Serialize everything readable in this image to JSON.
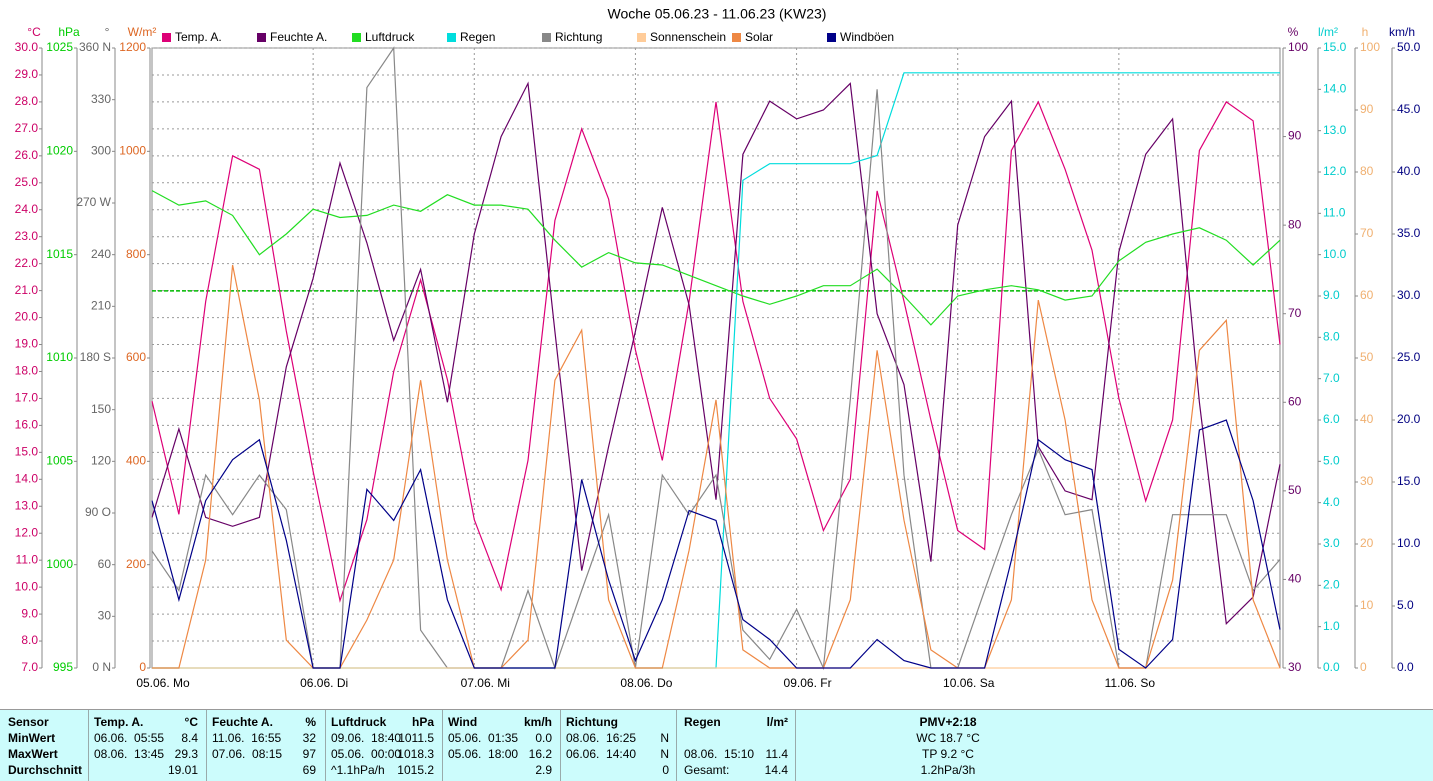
{
  "chart_data": {
    "type": "line",
    "title": "Woche 05.06.23 - 11.06.23 (KW23)",
    "x_labels": [
      "05.06.  Mo",
      "06.06.  Di",
      "07.06.  Mi",
      "08.06.  Do",
      "09.06.  Fr",
      "10.06.  Sa",
      "11.06.  So"
    ],
    "grid": true,
    "axes": [
      {
        "unit": "°C",
        "side": "left",
        "color": "#cc0066",
        "lim": [
          7,
          30
        ],
        "ticks": [
          {
            "value": 7,
            "label": "7.0"
          },
          {
            "value": 8,
            "label": "8.0"
          },
          {
            "value": 9,
            "label": "9.0"
          },
          {
            "value": 10,
            "label": "10.0"
          },
          {
            "value": 11,
            "label": "11.0"
          },
          {
            "value": 12,
            "label": "12.0"
          },
          {
            "value": 13,
            "label": "13.0"
          },
          {
            "value": 14,
            "label": "14.0"
          },
          {
            "value": 15,
            "label": "15.0"
          },
          {
            "value": 16,
            "label": "16.0"
          },
          {
            "value": 17,
            "label": "17.0"
          },
          {
            "value": 18,
            "label": "18.0"
          },
          {
            "value": 19,
            "label": "19.0"
          },
          {
            "value": 20,
            "label": "20.0"
          },
          {
            "value": 21,
            "label": "21.0"
          },
          {
            "value": 22,
            "label": "22.0"
          },
          {
            "value": 23,
            "label": "23.0"
          },
          {
            "value": 24,
            "label": "24.0"
          },
          {
            "value": 25,
            "label": "25.0"
          },
          {
            "value": 26,
            "label": "26.0"
          },
          {
            "value": 27,
            "label": "27.0"
          },
          {
            "value": 28,
            "label": "28.0"
          },
          {
            "value": 29,
            "label": "29.0"
          },
          {
            "value": 30,
            "label": "30.0"
          }
        ]
      },
      {
        "unit": "hPa",
        "side": "left",
        "color": "#00cc00",
        "lim": [
          995,
          1025
        ],
        "ticks": [
          995,
          1000,
          1005,
          1010,
          1015,
          1020,
          1025
        ]
      },
      {
        "unit": "°",
        "side": "left",
        "color": "#666666",
        "lim": [
          0,
          360
        ],
        "ticks": [
          {
            "value": 0,
            "label": "0 N"
          },
          30,
          60,
          {
            "value": 90,
            "label": "90 O"
          },
          120,
          150,
          {
            "value": 180,
            "label": "180 S"
          },
          210,
          240,
          {
            "value": 270,
            "label": "270 W"
          },
          300,
          330,
          {
            "value": 360,
            "label": "360 N"
          }
        ]
      },
      {
        "unit": "W/m²",
        "side": "left",
        "color": "#dd6622",
        "lim": [
          0,
          1200
        ],
        "ticks": [
          0,
          200,
          400,
          600,
          800,
          1000,
          1200
        ]
      },
      {
        "unit": "%",
        "side": "right",
        "color": "#660066",
        "lim": [
          30,
          100
        ],
        "ticks": [
          30,
          40,
          50,
          60,
          70,
          80,
          90,
          100
        ]
      },
      {
        "unit": "l/m²",
        "side": "right",
        "color": "#00cccc",
        "lim": [
          0,
          15
        ],
        "ticks": [
          {
            "value": 0,
            "label": "0.0"
          },
          {
            "value": 1,
            "label": "1.0"
          },
          {
            "value": 2,
            "label": "2.0"
          },
          {
            "value": 3,
            "label": "3.0"
          },
          {
            "value": 4,
            "label": "4.0"
          },
          {
            "value": 5,
            "label": "5.0"
          },
          {
            "value": 6,
            "label": "6.0"
          },
          {
            "value": 7,
            "label": "7.0"
          },
          {
            "value": 8,
            "label": "8.0"
          },
          {
            "value": 9,
            "label": "9.0"
          },
          {
            "value": 10,
            "label": "10.0"
          },
          {
            "value": 11,
            "label": "11.0"
          },
          {
            "value": 12,
            "label": "12.0"
          },
          {
            "value": 13,
            "label": "13.0"
          },
          {
            "value": 14,
            "label": "14.0"
          },
          {
            "value": 15,
            "label": "15.0"
          }
        ]
      },
      {
        "unit": "h",
        "side": "right",
        "color": "#f0b070",
        "lim": [
          0,
          100
        ],
        "ticks": [
          0,
          10,
          20,
          30,
          40,
          50,
          60,
          70,
          80,
          90,
          100
        ]
      },
      {
        "unit": "km/h",
        "side": "right",
        "color": "#000080",
        "lim": [
          0,
          50
        ],
        "ticks": [
          {
            "value": 0,
            "label": "0.0"
          },
          {
            "value": 5,
            "label": "5.0"
          },
          {
            "value": 10,
            "label": "10.0"
          },
          {
            "value": 15,
            "label": "15.0"
          },
          {
            "value": 20,
            "label": "20.0"
          },
          {
            "value": 25,
            "label": "25.0"
          },
          {
            "value": 30,
            "label": "30.0"
          },
          {
            "value": 35,
            "label": "35.0"
          },
          {
            "value": 40,
            "label": "40.0"
          },
          {
            "value": 45,
            "label": "45.0"
          },
          {
            "value": 50,
            "label": "50.0"
          }
        ]
      }
    ],
    "pressure_reference": {
      "axis": 1,
      "value": 1013.25,
      "color": "#00bb00"
    },
    "series": [
      {
        "name": "Temp. A.",
        "color": "#dd0077",
        "axis": 0,
        "values": [
          16.9,
          12.7,
          20.6,
          26.0,
          25.5,
          19.5,
          14.3,
          9.5,
          12.5,
          18.0,
          21.4,
          17.7,
          12.5,
          9.9,
          14.7,
          23.6,
          27.0,
          24.4,
          18.8,
          14.7,
          20.6,
          28.0,
          20.6,
          17.0,
          15.5,
          12.1,
          14.0,
          24.7,
          20.6,
          16.2,
          12.1,
          11.4,
          26.2,
          28.0,
          25.5,
          22.5,
          17.0,
          13.2,
          16.2,
          26.2,
          28.0,
          27.3,
          19.0
        ]
      },
      {
        "name": "Feuchte A.",
        "color": "#660066",
        "axis": 4,
        "values": [
          47,
          57,
          47,
          46,
          47,
          64,
          74,
          87,
          78,
          67,
          75,
          60,
          79,
          90,
          96,
          68,
          41,
          55,
          68,
          82,
          71,
          49,
          88,
          94,
          92,
          93,
          96,
          70,
          62,
          42,
          80,
          90,
          94,
          55,
          50,
          49,
          77,
          88,
          92,
          60,
          35,
          38,
          53
        ]
      },
      {
        "name": "Luftdruck",
        "color": "#22dd22",
        "axis": 1,
        "values": [
          1018.1,
          1017.4,
          1017.6,
          1016.9,
          1015.0,
          1016.0,
          1017.2,
          1016.8,
          1016.9,
          1017.4,
          1017.1,
          1017.9,
          1017.4,
          1017.4,
          1017.2,
          1015.7,
          1014.4,
          1015.1,
          1014.6,
          1014.5,
          1014.0,
          1013.5,
          1013.0,
          1012.6,
          1013.0,
          1013.5,
          1013.5,
          1014.3,
          1013.0,
          1011.6,
          1013.0,
          1013.3,
          1013.5,
          1013.3,
          1012.8,
          1013.0,
          1014.7,
          1015.6,
          1016.0,
          1016.3,
          1015.7,
          1014.5,
          1015.7
        ]
      },
      {
        "name": "Regen",
        "color": "#00dddd",
        "axis": 5,
        "values": [
          0,
          0,
          0,
          0,
          0,
          0,
          0,
          0,
          0,
          0,
          0,
          0,
          0,
          0,
          0,
          0,
          0,
          0,
          0,
          0,
          0,
          0,
          11.8,
          12.2,
          12.2,
          12.2,
          12.2,
          12.4,
          14.4,
          14.4,
          14.4,
          14.4,
          14.4,
          14.4,
          14.4,
          14.4,
          14.4,
          14.4,
          14.4,
          14.4,
          14.4,
          14.4,
          14.4
        ]
      },
      {
        "name": "Richtung",
        "color": "#888888",
        "axis": 2,
        "values": [
          68,
          45,
          112,
          89,
          112,
          92,
          0,
          0,
          337,
          360,
          22,
          0,
          0,
          0,
          45,
          0,
          45,
          89,
          0,
          112,
          89,
          112,
          22,
          5,
          34,
          0,
          156,
          336,
          112,
          0,
          0,
          45,
          89,
          127,
          89,
          92,
          0,
          0,
          89,
          89,
          89,
          45,
          63
        ]
      },
      {
        "name": "Sonnenschein",
        "color": "#ffcc99",
        "axis": 6,
        "values": [
          0,
          0,
          0,
          0,
          0,
          0,
          0,
          0,
          0,
          0,
          0,
          0,
          0,
          0,
          0,
          0,
          0,
          0,
          0,
          0,
          0,
          0,
          0,
          0,
          0,
          0,
          0,
          0,
          0,
          0,
          0,
          0,
          0,
          0,
          0,
          0,
          0,
          0,
          0,
          0,
          0,
          0,
          0
        ]
      },
      {
        "name": "Solar",
        "color": "#ee8844",
        "axis": 3,
        "values": [
          0,
          0,
          209,
          780,
          519,
          54,
          0,
          0,
          93,
          209,
          557,
          209,
          0,
          0,
          54,
          557,
          654,
          132,
          0,
          0,
          228,
          519,
          35,
          0,
          0,
          0,
          132,
          615,
          286,
          35,
          0,
          0,
          132,
          712,
          480,
          132,
          0,
          0,
          170,
          615,
          673,
          132,
          0
        ]
      },
      {
        "name": "Windböen",
        "color": "#000088",
        "axis": 7,
        "values": [
          13.5,
          5.5,
          13.5,
          16.8,
          18.4,
          10.3,
          0,
          0,
          14.4,
          11.9,
          16.0,
          5.5,
          0,
          0,
          0,
          0,
          15.2,
          7.1,
          0.6,
          5.5,
          12.7,
          11.9,
          3.9,
          2.3,
          0,
          0,
          0,
          2.3,
          0.6,
          0,
          0,
          0,
          8.7,
          18.4,
          16.8,
          16.0,
          1.5,
          0,
          2.3,
          19.2,
          20.0,
          13.5,
          3.1
        ]
      }
    ]
  },
  "table": {
    "labels": [
      "Sensor",
      "MinWert",
      "MaxWert",
      "Durchschnitt"
    ],
    "sections": [
      {
        "header": "Temp. A.",
        "unit": "°C",
        "rows": [
          {
            "time": "06.06.  05:55",
            "value": "8.4"
          },
          {
            "time": "08.06.  13:45",
            "value": "29.3"
          },
          {
            "value": "19.01"
          }
        ]
      },
      {
        "header": "Feuchte A.",
        "unit": "%",
        "rows": [
          {
            "time": "11.06.  16:55",
            "value": "32"
          },
          {
            "time": "07.06.  08:15",
            "value": "97"
          },
          {
            "value": "69"
          }
        ]
      },
      {
        "header": "Luftdruck",
        "unit": "hPa",
        "rows": [
          {
            "time": "09.06.  18:40",
            "value": "1011.5"
          },
          {
            "time": "05.06.  00:00",
            "value": "1018.3"
          },
          {
            "time": "^1.1hPa/h",
            "value": "1015.2"
          }
        ]
      },
      {
        "header": "Wind",
        "unit": "km/h",
        "rows": [
          {
            "time": "05.06.  01:35",
            "value": "0.0"
          },
          {
            "time": "05.06.  18:00",
            "value": "16.2"
          },
          {
            "value": "2.9"
          }
        ]
      },
      {
        "header": "Richtung",
        "rows": [
          {
            "time": "08.06.  16:25",
            "value": "N"
          },
          {
            "time": "06.06.  14:40",
            "value": "N"
          },
          {
            "value": "0"
          }
        ]
      },
      {
        "header": "Regen",
        "unit": "l/m²",
        "rows": [
          null,
          {
            "time": "08.06.  15:10",
            "value": "11.4"
          },
          {
            "time": "Gesamt:",
            "value": "14.4"
          }
        ]
      }
    ],
    "pmv": {
      "header": "PMV+2:18",
      "lines": [
        "WC 18.7 °C",
        "TP 9.2 °C",
        "1.2hPa/3h"
      ]
    }
  }
}
